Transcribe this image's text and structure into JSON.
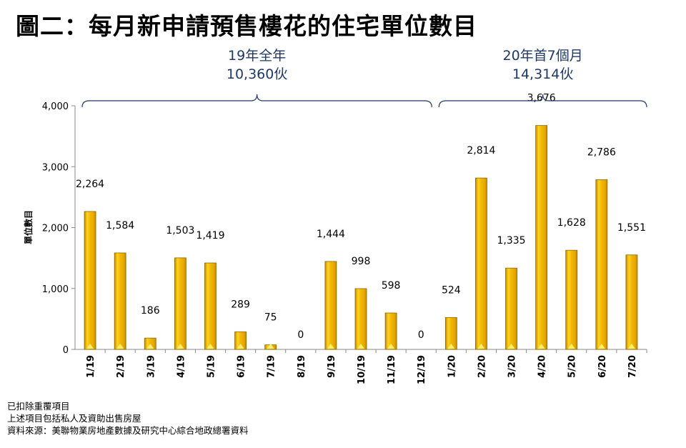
{
  "title": "圖二：每月新申請預售樓花的住宅單位數目",
  "notes": [
    "已扣除重覆項目",
    "上述項目包括私人及資助出售房屋",
    "資料來源：美聯物業房地產數據及研究中心綜合地政總署資料"
  ],
  "colors": {
    "bar": "#F2B705",
    "bar_dark": "#C48A00",
    "annotation": "#1F3864"
  },
  "chart_data": {
    "type": "bar",
    "title": "圖二：每月新申請預售樓花的住宅單位數目",
    "xlabel": "",
    "ylabel": "單位數目",
    "ylim": [
      0,
      4000
    ],
    "yticks": [
      0,
      1000,
      2000,
      3000,
      4000
    ],
    "ytick_labels": [
      "0",
      "1,000",
      "2,000",
      "3,000",
      "4,000"
    ],
    "grid": false,
    "categories": [
      "1/19",
      "2/19",
      "3/19",
      "4/19",
      "5/19",
      "6/19",
      "7/19",
      "8/19",
      "9/19",
      "10/19",
      "11/19",
      "12/19",
      "1/20",
      "2/20",
      "3/20",
      "4/20",
      "5/20",
      "6/20",
      "7/20"
    ],
    "values": [
      2264,
      1584,
      186,
      1503,
      1419,
      289,
      75,
      0,
      1444,
      998,
      598,
      0,
      524,
      2814,
      1335,
      3676,
      1628,
      2786,
      1551
    ],
    "data_labels": [
      "2,264",
      "1,584",
      "186",
      "1,503",
      "1,419",
      "289",
      "75",
      "0",
      "1,444",
      "998",
      "598",
      "0",
      "524",
      "2,814",
      "1,335",
      "3,676",
      "1,628",
      "2,786",
      "1,551"
    ],
    "annotations": [
      {
        "label_line1": "19年全年",
        "label_line2": "10,360伙",
        "from": "1/19",
        "to": "12/19"
      },
      {
        "label_line1": "20年首7個月",
        "label_line2": "14,314伙",
        "from": "1/20",
        "to": "7/20"
      }
    ]
  }
}
